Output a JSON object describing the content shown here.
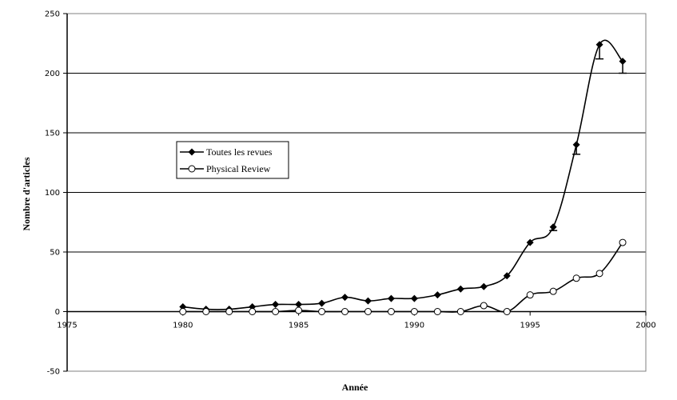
{
  "chart_data": {
    "type": "line",
    "title": "",
    "xlabel": "Année",
    "ylabel": "Nombre d'articles",
    "xlim": [
      1975,
      2000
    ],
    "ylim": [
      -50,
      250
    ],
    "x_ticks": [
      "1975",
      "1980",
      "1985",
      "1990",
      "1995",
      "2000"
    ],
    "y_ticks": [
      "-50",
      "0",
      "50",
      "100",
      "150",
      "200",
      "250"
    ],
    "grid": "horizontal",
    "legend_position": "left-middle",
    "series": [
      {
        "name": "Toutes les revues",
        "marker": "filled-diamond",
        "color": "#000000",
        "x": [
          1980,
          1981,
          1982,
          1983,
          1984,
          1985,
          1986,
          1987,
          1988,
          1989,
          1990,
          1991,
          1992,
          1993,
          1994,
          1995,
          1996,
          1997,
          1998,
          1999
        ],
        "y": [
          4,
          2,
          2,
          4,
          6,
          6,
          7,
          12,
          9,
          11,
          11,
          14,
          19,
          21,
          30,
          58,
          71,
          140,
          224,
          210
        ],
        "error_bars": [
          {
            "x": 1996,
            "low": 68
          },
          {
            "x": 1997,
            "low": 132
          },
          {
            "x": 1998,
            "low": 212
          },
          {
            "x": 1999,
            "low": 200
          }
        ]
      },
      {
        "name": "Physical Review",
        "marker": "open-circle",
        "color": "#000000",
        "x": [
          1980,
          1981,
          1982,
          1983,
          1984,
          1985,
          1986,
          1987,
          1988,
          1989,
          1990,
          1991,
          1992,
          1993,
          1994,
          1995,
          1996,
          1997,
          1998,
          1999
        ],
        "y": [
          0,
          0,
          0,
          0,
          0,
          1,
          0,
          0,
          0,
          0,
          0,
          0,
          0,
          5,
          0,
          14,
          17,
          28,
          32,
          58
        ]
      }
    ]
  }
}
